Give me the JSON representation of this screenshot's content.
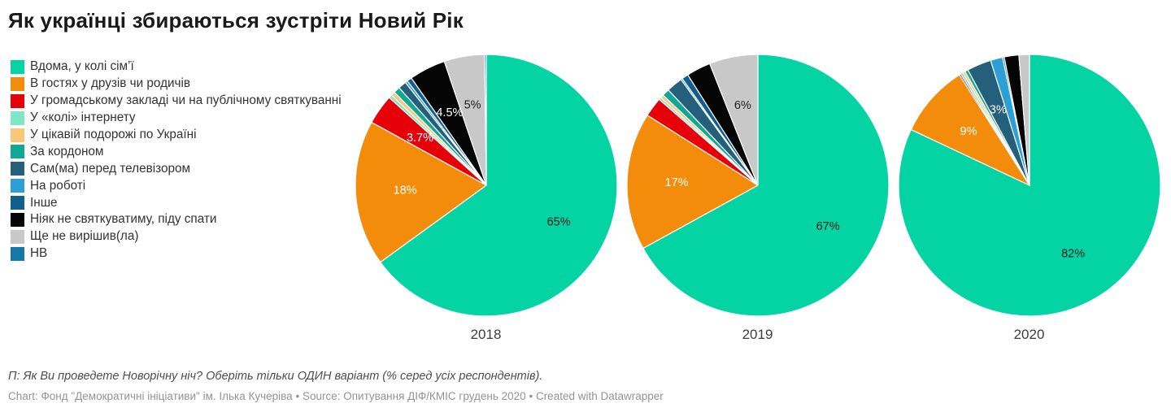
{
  "chart_data": {
    "type": "pie",
    "title": "Як українці збираються зустріти Новий Рік",
    "legend_position": "left",
    "categories": [
      "Вдома, у колі сім’ї",
      "В гостях у друзів чи родичів",
      "У громадському закладі чи на публічному святкуванні",
      "У «колі» інтернету",
      "У цікавій подорожі по Україні",
      "За кордоном",
      "Сам(ма) перед телевізором",
      "На роботі",
      "Інше",
      "Ніяк не святкуватиму, піду спати",
      "Ще не вирішив(ла)",
      "НВ"
    ],
    "colors": [
      "#04d3a4",
      "#f28c0a",
      "#e6000a",
      "#7fe7c3",
      "#fac678",
      "#10a796",
      "#24607c",
      "#2b9fd6",
      "#115e8f",
      "#050505",
      "#c8c8c8",
      "#1479a8"
    ],
    "unit": "%",
    "series": [
      {
        "name": "2018",
        "values": [
          65,
          18,
          3.7,
          0.4,
          0.5,
          0.8,
          1.0,
          0.3,
          0.6,
          4.5,
          5.0,
          0.2
        ],
        "labels": [
          {
            "slice": 0,
            "text": "65%",
            "color": "#1d1d1d"
          },
          {
            "slice": 1,
            "text": "18%",
            "color": "#ffffff"
          },
          {
            "slice": 2,
            "text": "3.7%",
            "color": "#ffffff"
          },
          {
            "slice": 9,
            "text": "4.5%",
            "color": "#ffffff"
          },
          {
            "slice": 10,
            "text": "5%",
            "color": "#1d1d1d"
          }
        ]
      },
      {
        "name": "2019",
        "values": [
          67,
          17,
          2.4,
          0.3,
          0.4,
          0.9,
          2.0,
          0.2,
          0.8,
          3.0,
          6.0,
          0
        ],
        "labels": [
          {
            "slice": 0,
            "text": "67%",
            "color": "#1d1d1d"
          },
          {
            "slice": 1,
            "text": "17%",
            "color": "#ffffff"
          },
          {
            "slice": 10,
            "text": "6%",
            "color": "#1d1d1d"
          }
        ]
      },
      {
        "name": "2020",
        "values": [
          82,
          9,
          0.2,
          0.3,
          0.3,
          0.4,
          3.0,
          1.5,
          0.2,
          1.8,
          1.3,
          0
        ],
        "labels": [
          {
            "slice": 0,
            "text": "82%",
            "color": "#1d1d1d"
          },
          {
            "slice": 1,
            "text": "9%",
            "color": "#ffffff"
          },
          {
            "slice": 6,
            "text": "3%",
            "color": "#ffffff"
          }
        ]
      }
    ]
  },
  "notes": {
    "question": "П: Як Ви проведете Новорічну ніч? Оберіть тільки ОДИН варіант (% серед усіх респондентів).",
    "credit_chart": "Chart: Фонд \"Демократичні ініціативи\" ім. Ілька Кучеріва",
    "credit_source": "Source: Опитування ДІФ/КМІС грудень 2020",
    "credit_created": "Created with Datawrapper",
    "separator": "•"
  }
}
